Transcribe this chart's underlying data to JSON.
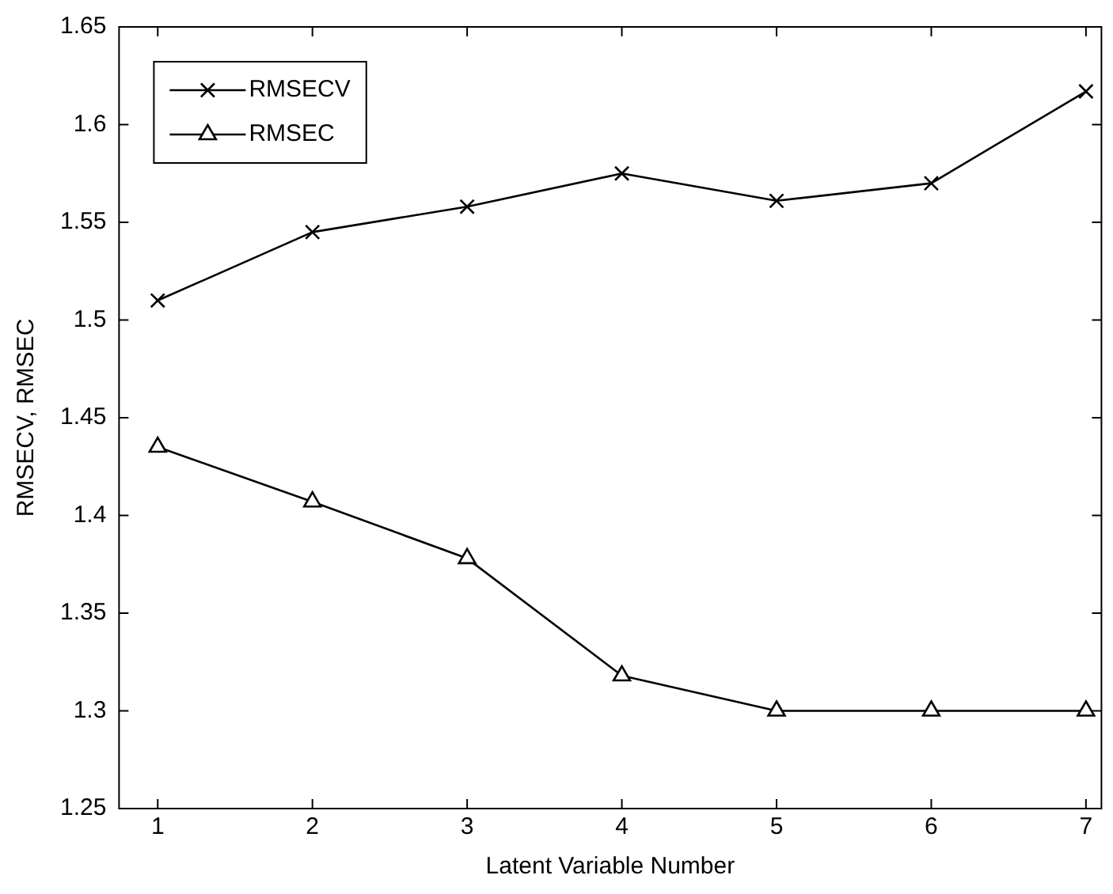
{
  "chart_data": {
    "type": "line",
    "xlabel": "Latent Variable Number",
    "ylabel": "RMSECV, RMSEC",
    "x": [
      1,
      2,
      3,
      4,
      5,
      6,
      7
    ],
    "series": [
      {
        "name": "RMSECV",
        "color": "#000000",
        "marker": "cross",
        "values": [
          1.51,
          1.545,
          1.558,
          1.575,
          1.561,
          1.57,
          1.617
        ]
      },
      {
        "name": "RMSEC",
        "color": "#000000",
        "marker": "triangle",
        "values": [
          1.435,
          1.407,
          1.378,
          1.318,
          1.3,
          1.3,
          1.3
        ]
      }
    ],
    "xlim": [
      0.75,
      7.1
    ],
    "xticks": [
      1,
      2,
      3,
      4,
      5,
      6,
      7
    ],
    "ylim": [
      1.25,
      1.65
    ],
    "yticks": [
      1.25,
      1.3,
      1.35,
      1.4,
      1.45,
      1.5,
      1.55,
      1.6,
      1.65
    ],
    "grid": false,
    "legend": "top left",
    "line_style": "solid"
  }
}
